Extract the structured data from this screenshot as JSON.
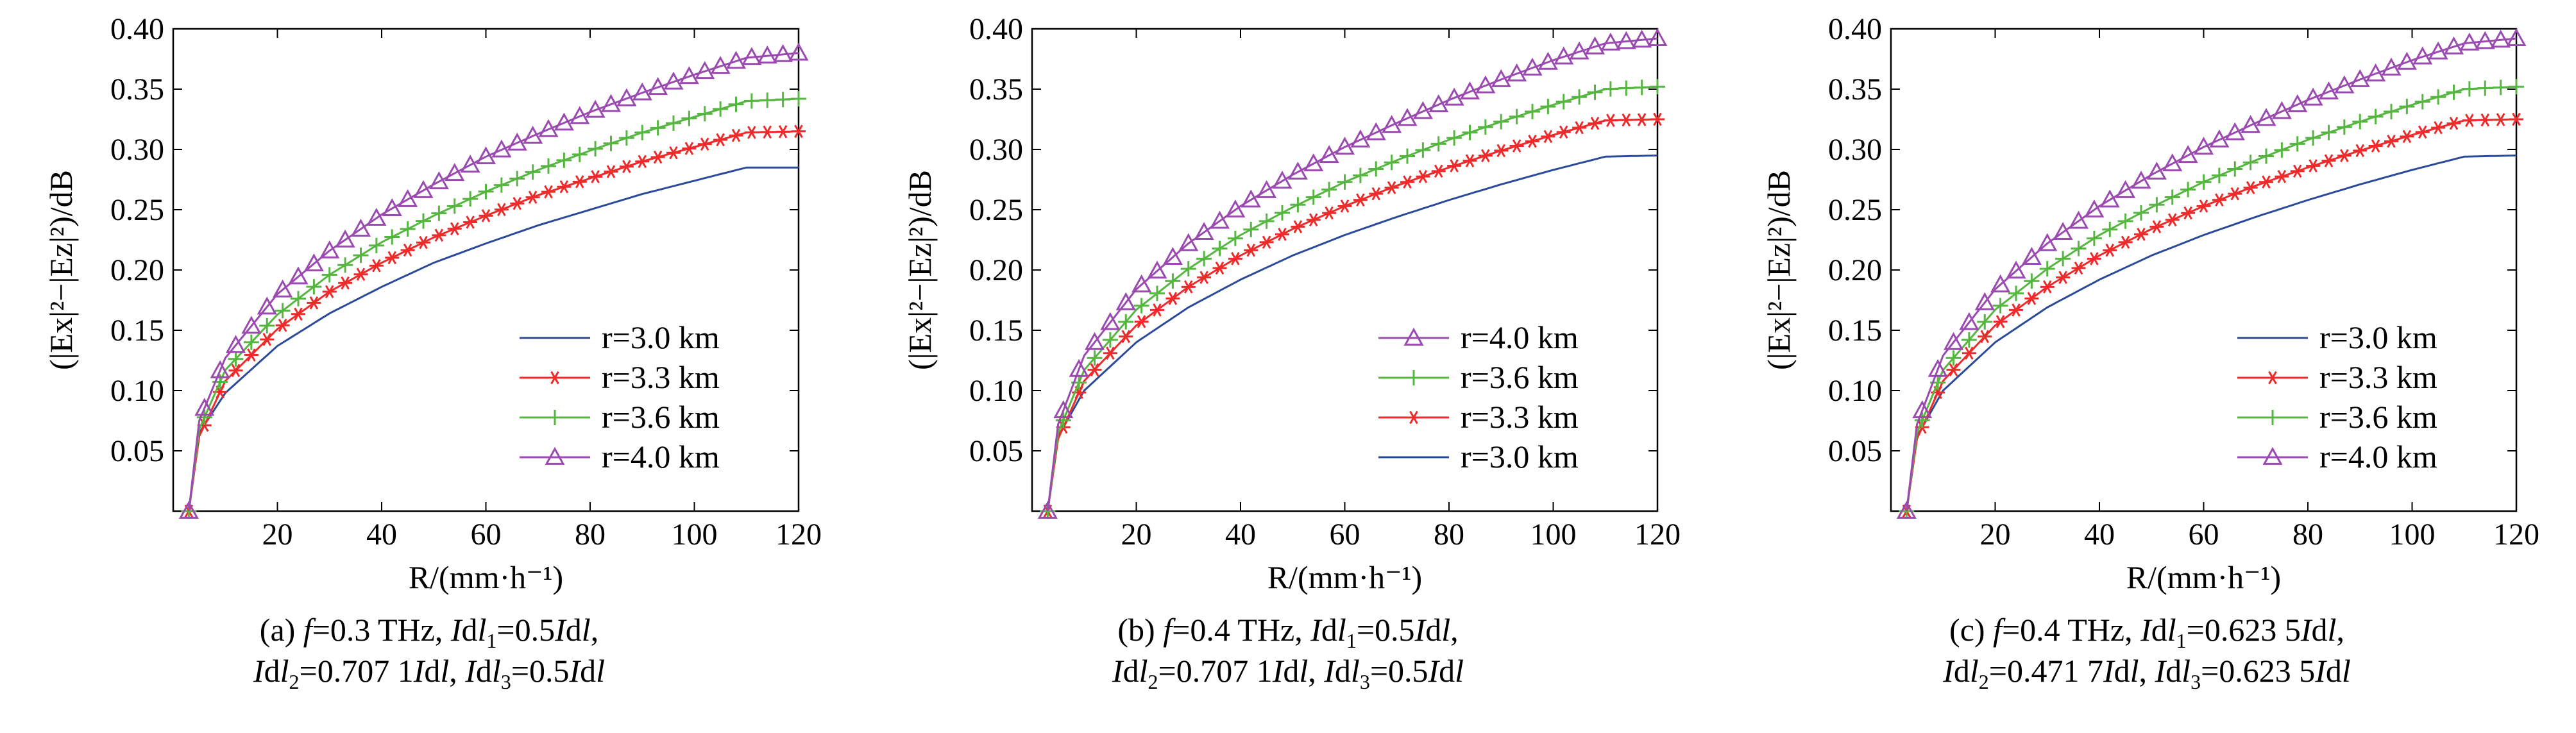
{
  "colors": {
    "r30": "#2b4a9a",
    "r33": "#ee2a2a",
    "r36": "#55b640",
    "r40": "#9a4ab0"
  },
  "chart_data": [
    {
      "type": "line",
      "xlabel": "R/(mm·h⁻¹)",
      "ylabel": "(|Ex|²−|Ez|²)/dB",
      "xlim": [
        0,
        120
      ],
      "ylim": [
        0,
        0.4
      ],
      "xticks": [
        20,
        40,
        60,
        80,
        100,
        120
      ],
      "yticks": [
        0.05,
        0.1,
        0.15,
        0.2,
        0.25,
        0.3,
        0.35,
        0.4
      ],
      "legend_position": "lower-right",
      "caption": {
        "label": "(a)",
        "f": "0.3",
        "i1": "0.5",
        "i2": "0.707 1",
        "i3": "0.5"
      },
      "x": [
        3,
        5,
        10,
        20,
        30,
        40,
        50,
        60,
        70,
        80,
        90,
        100,
        110,
        120
      ],
      "series": [
        {
          "name": "r=3.0 km",
          "key": "r30",
          "marker": "none",
          "values": [
            0.0,
            0.065,
            0.098,
            0.137,
            0.164,
            0.186,
            0.206,
            0.222,
            0.237,
            0.25,
            0.263,
            0.274,
            0.285,
            0.285
          ]
        },
        {
          "name": "r=3.3 km",
          "key": "r33",
          "marker": "star",
          "values": [
            0.0,
            0.062,
            0.108,
            0.151,
            0.182,
            0.206,
            0.227,
            0.245,
            0.262,
            0.276,
            0.29,
            0.302,
            0.314,
            0.315
          ]
        },
        {
          "name": "r=3.6 km",
          "key": "r36",
          "marker": "plus",
          "values": [
            0.0,
            0.068,
            0.117,
            0.163,
            0.196,
            0.223,
            0.245,
            0.265,
            0.283,
            0.299,
            0.314,
            0.327,
            0.34,
            0.342
          ]
        },
        {
          "name": "r=4.0 km",
          "key": "r40",
          "marker": "triangle",
          "values": [
            0.0,
            0.075,
            0.127,
            0.18,
            0.216,
            0.246,
            0.271,
            0.294,
            0.313,
            0.331,
            0.347,
            0.362,
            0.376,
            0.38
          ]
        }
      ],
      "legend_order": [
        "r30",
        "r33",
        "r36",
        "r40"
      ]
    },
    {
      "type": "line",
      "xlabel": "R/(mm·h⁻¹)",
      "ylabel": "(|Ex|²−|Ez|²)/dB",
      "xlim": [
        0,
        120
      ],
      "ylim": [
        0,
        0.4
      ],
      "xticks": [
        20,
        40,
        60,
        80,
        100,
        120
      ],
      "yticks": [
        0.05,
        0.1,
        0.15,
        0.2,
        0.25,
        0.3,
        0.35,
        0.4
      ],
      "legend_position": "lower-right",
      "caption": {
        "label": "(b)",
        "f": "0.4",
        "i1": "0.5",
        "i2": "0.707 1",
        "i3": "0.5"
      },
      "x": [
        3,
        5,
        10,
        20,
        30,
        40,
        50,
        60,
        70,
        80,
        90,
        100,
        110,
        120
      ],
      "series": [
        {
          "name": "r=3.0 km",
          "key": "r30",
          "marker": "none",
          "values": [
            0.0,
            0.062,
            0.1,
            0.14,
            0.169,
            0.192,
            0.212,
            0.229,
            0.244,
            0.258,
            0.271,
            0.283,
            0.294,
            0.295
          ]
        },
        {
          "name": "r=3.3 km",
          "key": "r33",
          "marker": "star",
          "values": [
            0.0,
            0.06,
            0.108,
            0.154,
            0.186,
            0.212,
            0.234,
            0.253,
            0.27,
            0.285,
            0.299,
            0.312,
            0.324,
            0.325
          ]
        },
        {
          "name": "r=3.6 km",
          "key": "r36",
          "marker": "plus",
          "values": [
            0.0,
            0.065,
            0.117,
            0.167,
            0.201,
            0.229,
            0.252,
            0.273,
            0.291,
            0.308,
            0.323,
            0.337,
            0.35,
            0.352
          ]
        },
        {
          "name": "r=4.0 km",
          "key": "r40",
          "marker": "triangle",
          "values": [
            0.0,
            0.072,
            0.129,
            0.184,
            0.222,
            0.253,
            0.279,
            0.302,
            0.322,
            0.341,
            0.358,
            0.374,
            0.388,
            0.392
          ]
        }
      ],
      "legend_order": [
        "r40",
        "r36",
        "r33",
        "r30"
      ]
    },
    {
      "type": "line",
      "xlabel": "R/(mm·h⁻¹)",
      "ylabel": "(|Ex|²−|Ez|²)/dB",
      "xlim": [
        0,
        120
      ],
      "ylim": [
        0,
        0.4
      ],
      "xticks": [
        20,
        40,
        60,
        80,
        100,
        120
      ],
      "yticks": [
        0.05,
        0.1,
        0.15,
        0.2,
        0.25,
        0.3,
        0.35,
        0.4
      ],
      "legend_position": "lower-right",
      "caption": {
        "label": "(c)",
        "f": "0.4",
        "i1": "0.623 5",
        "i2": "0.471 7",
        "i3": "0.623 5"
      },
      "x": [
        3,
        5,
        10,
        20,
        30,
        40,
        50,
        60,
        70,
        80,
        90,
        100,
        110,
        120
      ],
      "series": [
        {
          "name": "r=3.0 km",
          "key": "r30",
          "marker": "none",
          "values": [
            0.0,
            0.062,
            0.1,
            0.14,
            0.169,
            0.192,
            0.212,
            0.229,
            0.244,
            0.258,
            0.271,
            0.283,
            0.294,
            0.295
          ]
        },
        {
          "name": "r=3.3 km",
          "key": "r33",
          "marker": "star",
          "values": [
            0.0,
            0.06,
            0.108,
            0.154,
            0.186,
            0.212,
            0.234,
            0.253,
            0.27,
            0.285,
            0.299,
            0.312,
            0.324,
            0.325
          ]
        },
        {
          "name": "r=3.6 km",
          "key": "r36",
          "marker": "plus",
          "values": [
            0.0,
            0.065,
            0.117,
            0.167,
            0.201,
            0.229,
            0.252,
            0.273,
            0.291,
            0.308,
            0.323,
            0.337,
            0.35,
            0.352
          ]
        },
        {
          "name": "r=4.0 km",
          "key": "r40",
          "marker": "triangle",
          "values": [
            0.0,
            0.072,
            0.129,
            0.184,
            0.222,
            0.253,
            0.279,
            0.302,
            0.322,
            0.341,
            0.358,
            0.374,
            0.388,
            0.392
          ]
        }
      ],
      "legend_order": [
        "r30",
        "r33",
        "r36",
        "r40"
      ]
    }
  ]
}
